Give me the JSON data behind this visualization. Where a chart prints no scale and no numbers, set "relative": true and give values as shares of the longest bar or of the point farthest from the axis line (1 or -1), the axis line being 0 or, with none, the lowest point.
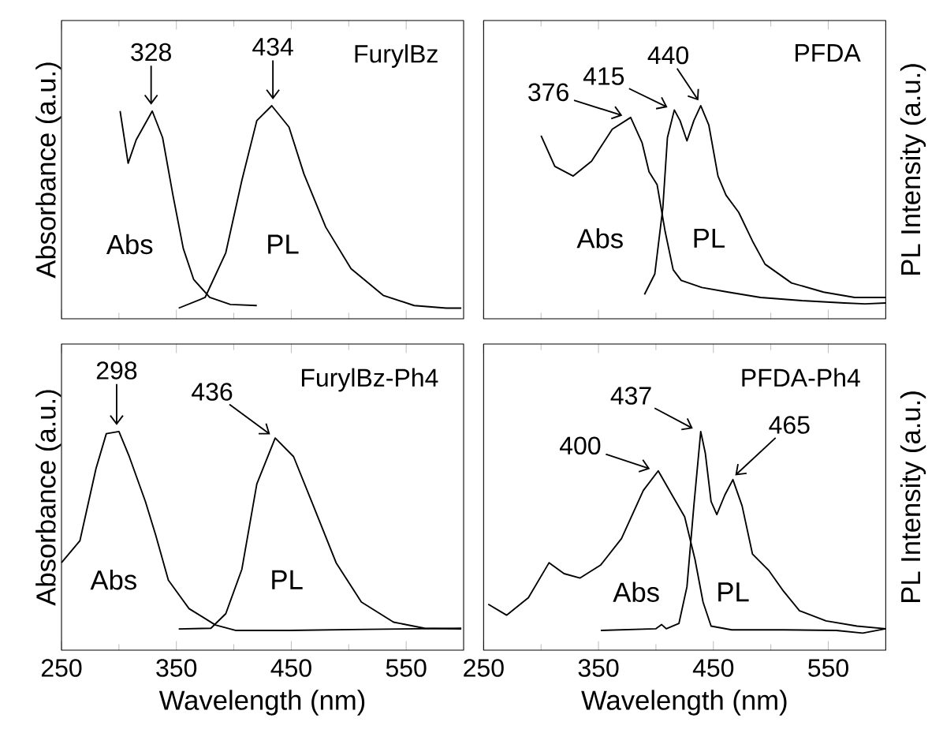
{
  "chart_data": [
    {
      "type": "line",
      "title": "FurylBz",
      "ylabel": "Absorbance (a.u.)",
      "relative": true,
      "xlim": [
        250,
        600
      ],
      "xticks": [
        250,
        350,
        450,
        550
      ],
      "tick_labels": false,
      "series": [
        {
          "name": "Abs",
          "color": "#000000",
          "x": [
            301,
            308,
            315,
            329,
            338,
            347,
            356,
            365,
            379,
            397,
            420
          ],
          "values": [
            0.975,
            0.73,
            0.84,
            0.975,
            0.85,
            0.58,
            0.33,
            0.185,
            0.1,
            0.067,
            0.062
          ]
        },
        {
          "name": "PL",
          "color": "#000000",
          "x": [
            352,
            375,
            393,
            407,
            420,
            433,
            448,
            461,
            480,
            502,
            530,
            557,
            585,
            598
          ],
          "values": [
            0.05,
            0.1,
            0.31,
            0.65,
            0.93,
            1.0,
            0.9,
            0.68,
            0.43,
            0.235,
            0.11,
            0.062,
            0.05,
            0.05
          ]
        }
      ],
      "annotations": [
        {
          "text": "328",
          "x": 328,
          "y": 0.975
        },
        {
          "text": "434",
          "x": 434,
          "y": 1.0
        }
      ]
    },
    {
      "type": "line",
      "title": "PFDA",
      "y2label": "PL Intensity (a.u.)",
      "relative": true,
      "xlim": [
        250,
        600
      ],
      "xticks": [
        250,
        350,
        450,
        550
      ],
      "tick_labels": false,
      "series": [
        {
          "name": "Abs",
          "color": "#000000",
          "x": [
            300,
            312,
            328,
            344,
            362,
            378,
            388,
            394,
            401,
            408,
            415,
            422,
            440,
            463,
            491,
            527,
            564,
            582,
            600
          ],
          "values": [
            0.86,
            0.715,
            0.67,
            0.74,
            0.89,
            0.945,
            0.825,
            0.69,
            0.63,
            0.41,
            0.23,
            0.18,
            0.147,
            0.125,
            0.1,
            0.085,
            0.074,
            0.07,
            0.074
          ]
        },
        {
          "name": "PL",
          "color": "#000000",
          "x": [
            390,
            399,
            406,
            410,
            416,
            421,
            427,
            433,
            439,
            446,
            454,
            461,
            472,
            484,
            495,
            518,
            546,
            573,
            600
          ],
          "values": [
            0.114,
            0.21,
            0.52,
            0.85,
            0.98,
            0.93,
            0.835,
            0.93,
            1.0,
            0.91,
            0.67,
            0.58,
            0.5,
            0.365,
            0.256,
            0.168,
            0.125,
            0.1,
            0.1
          ]
        }
      ],
      "annotations": [
        {
          "text": "376",
          "x": 376,
          "y": 0.945
        },
        {
          "text": "415",
          "x": 415,
          "y": 0.98
        },
        {
          "text": "440",
          "x": 440,
          "y": 1.0
        }
      ]
    },
    {
      "type": "line",
      "title": "FurylBz-Ph4",
      "ylabel": "Absorbance (a.u.)",
      "xlabel": "Wavelength (nm)",
      "relative": true,
      "xlim": [
        250,
        600
      ],
      "xticks": [
        250,
        350,
        450,
        550
      ],
      "tick_labels": "x",
      "series": [
        {
          "name": "Abs",
          "color": "#000000",
          "x": [
            250,
            266,
            280,
            289,
            300,
            309,
            323,
            332,
            343,
            361,
            384,
            402,
            448,
            516,
            598
          ],
          "values": [
            0.4,
            0.5,
            0.83,
            0.99,
            1.0,
            0.885,
            0.68,
            0.526,
            0.32,
            0.19,
            0.115,
            0.09,
            0.09,
            0.095,
            0.1
          ]
        },
        {
          "name": "PL",
          "color": "#000000",
          "x": [
            352,
            380,
            393,
            407,
            420,
            436,
            452,
            470,
            489,
            511,
            539,
            566,
            598
          ],
          "values": [
            0.097,
            0.1,
            0.167,
            0.37,
            0.76,
            0.97,
            0.885,
            0.65,
            0.4,
            0.22,
            0.128,
            0.1,
            0.097
          ]
        }
      ],
      "annotations": [
        {
          "text": "298",
          "x": 298,
          "y": 1.0
        },
        {
          "text": "436",
          "x": 436,
          "y": 0.97
        }
      ]
    },
    {
      "type": "line",
      "title": "PFDA-Ph4",
      "y2label": "PL Intensity (a.u.)",
      "xlabel": "Wavelength (nm)",
      "relative": true,
      "xlim": [
        250,
        600
      ],
      "xticks": [
        250,
        350,
        450,
        550
      ],
      "tick_labels": "x",
      "series": [
        {
          "name": "Abs",
          "color": "#000000",
          "x": [
            254,
            270,
            289,
            307,
            320,
            334,
            352,
            370,
            389,
            402,
            414,
            425,
            434,
            441,
            448,
            466,
            511,
            557,
            580,
            600
          ],
          "values": [
            0.21,
            0.16,
            0.24,
            0.4,
            0.35,
            0.33,
            0.39,
            0.51,
            0.73,
            0.82,
            0.71,
            0.61,
            0.415,
            0.22,
            0.11,
            0.093,
            0.093,
            0.09,
            0.078,
            0.098
          ]
        },
        {
          "name": "PL",
          "color": "#000000",
          "x": [
            352,
            400,
            405,
            409,
            420,
            427,
            433,
            439,
            443,
            448,
            453,
            460,
            467,
            475,
            484,
            498,
            511,
            525,
            548,
            575,
            600
          ],
          "values": [
            0.09,
            0.098,
            0.117,
            0.098,
            0.122,
            0.29,
            0.66,
            1.0,
            0.9,
            0.68,
            0.62,
            0.71,
            0.78,
            0.66,
            0.44,
            0.366,
            0.27,
            0.18,
            0.134,
            0.11,
            0.098
          ]
        }
      ],
      "annotations": [
        {
          "text": "400",
          "x": 400,
          "y": 0.82
        },
        {
          "text": "437",
          "x": 437,
          "y": 1.0
        },
        {
          "text": "465",
          "x": 465,
          "y": 0.78
        }
      ]
    }
  ]
}
